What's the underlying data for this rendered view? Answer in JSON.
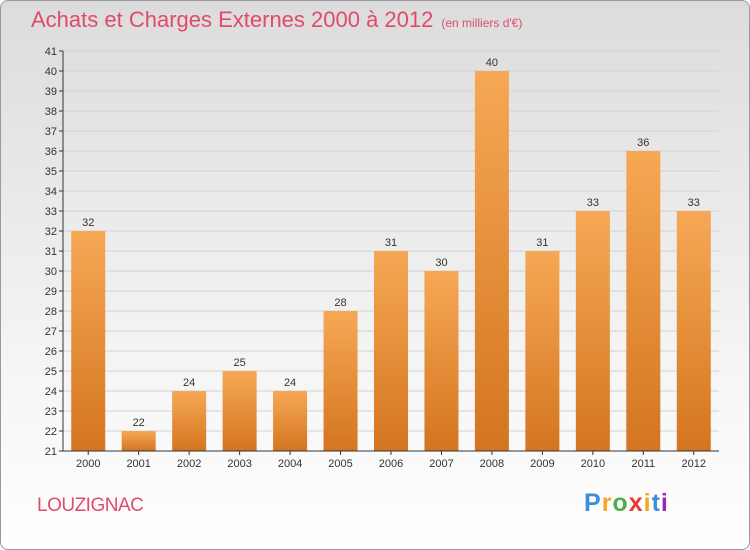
{
  "header": {
    "title": "Achats et Charges Externes 2000 à 2012",
    "subtitle": "(en milliers d'€)"
  },
  "footer": {
    "commune": "LOUZIGNAC",
    "logo_letters": [
      "P",
      "r",
      "o",
      "x",
      "i",
      "t",
      "i"
    ],
    "logo_colors": [
      "#3a8fd8",
      "#f5a623",
      "#4caf50",
      "#e53935",
      "#f5a623",
      "#3a8fd8",
      "#9c27b0"
    ]
  },
  "colors": {
    "bar_light": "#f6a855",
    "bar_dark": "#d4751f",
    "grid": "#d2d2d2",
    "axis": "#333333",
    "text": "#333333"
  },
  "chart_data": {
    "type": "bar",
    "categories": [
      "2000",
      "2001",
      "2002",
      "2003",
      "2004",
      "2005",
      "2006",
      "2007",
      "2008",
      "2009",
      "2010",
      "2011",
      "2012"
    ],
    "values": [
      32,
      22,
      24,
      25,
      24,
      28,
      31,
      30,
      40,
      31,
      33,
      36,
      33
    ],
    "ylim": [
      21,
      41
    ],
    "yticks": [
      21,
      22,
      23,
      24,
      25,
      26,
      27,
      28,
      29,
      30,
      31,
      32,
      33,
      34,
      35,
      36,
      37,
      38,
      39,
      40,
      41
    ],
    "grid": true,
    "data_labels": true
  }
}
